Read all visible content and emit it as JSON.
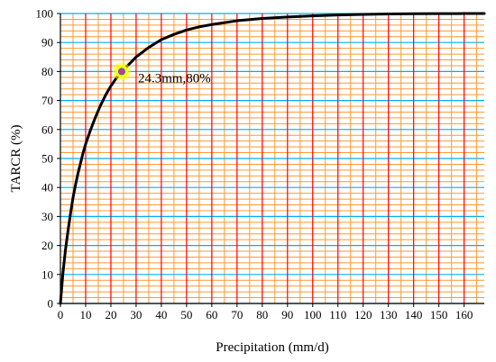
{
  "chart_data": {
    "type": "line",
    "xlabel": "Precipitation  (mm/d)",
    "ylabel": "TARCR (%)",
    "xlim": [
      0,
      168
    ],
    "ylim": [
      0,
      100
    ],
    "x_ticks": [
      0,
      10,
      20,
      30,
      40,
      50,
      60,
      70,
      80,
      90,
      100,
      110,
      120,
      130,
      140,
      150,
      160
    ],
    "y_ticks": [
      0,
      10,
      20,
      30,
      40,
      50,
      60,
      70,
      80,
      90,
      100
    ],
    "grid": {
      "vertical_major_every": 10,
      "vertical_minor_every": 5,
      "horizontal_major_every": 10,
      "horizontal_minor_every": 2
    },
    "series": [
      {
        "x": [
          0,
          1,
          2,
          3,
          4,
          5,
          6,
          7,
          8,
          9,
          10,
          12,
          14,
          16,
          18,
          20,
          22,
          24.3,
          26,
          28,
          30,
          35,
          40,
          45,
          50,
          55,
          60,
          70,
          80,
          90,
          100,
          110,
          120,
          130,
          140,
          150,
          160,
          168
        ],
        "y": [
          0,
          10.5,
          18.5,
          25,
          31,
          36.5,
          41,
          45,
          48.5,
          52,
          55,
          60,
          64.5,
          68.5,
          72,
          75,
          77.5,
          80,
          81.5,
          83.2,
          85,
          88.3,
          91,
          92.8,
          94.3,
          95.4,
          96.2,
          97.5,
          98.3,
          98.8,
          99.2,
          99.5,
          99.7,
          99.85,
          99.92,
          99.96,
          99.98,
          100
        ]
      }
    ],
    "highlight_point": {
      "x": 24.3,
      "y": 80,
      "label": "24.3mm,80%"
    },
    "colors": {
      "major_vertical": "#ff0000",
      "minor_vertical": "#ff9933",
      "major_horizontal": "#00b0f0",
      "minor_horizontal": "#ff9933",
      "curve": "#000000",
      "highlight_fill": "#ffff00",
      "highlight_marker": "#cc3399",
      "highlight_marker_edge": "#3366cc"
    }
  }
}
